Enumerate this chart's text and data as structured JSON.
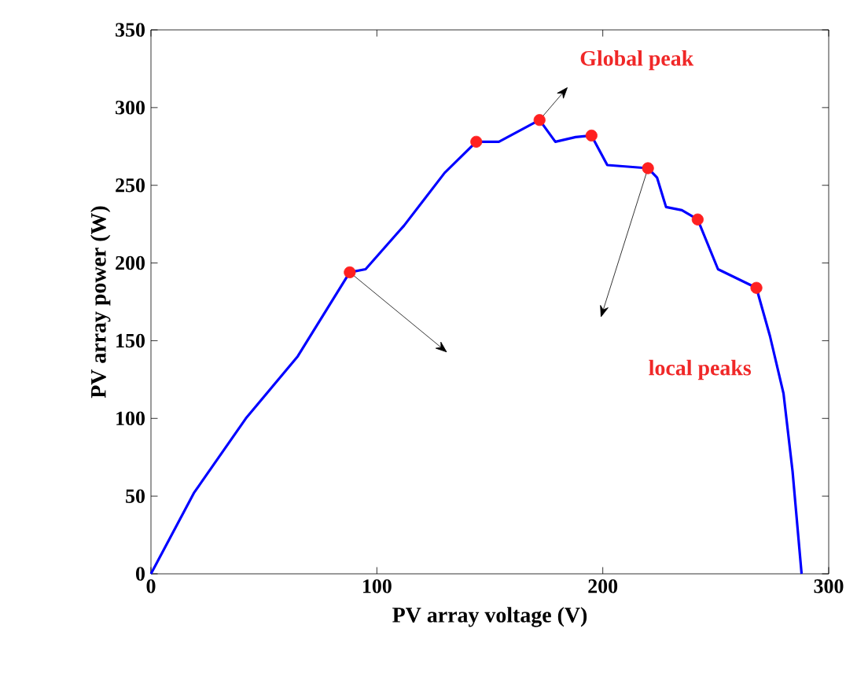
{
  "chart_data": {
    "type": "line",
    "xlabel": "PV array voltage (V)",
    "ylabel": "PV array power (W)",
    "xlim": [
      0,
      300
    ],
    "ylim": [
      0,
      350
    ],
    "xticks": [
      0,
      100,
      200,
      300
    ],
    "yticks": [
      0,
      50,
      100,
      150,
      200,
      250,
      300,
      350
    ],
    "series": [
      {
        "color": "#0000ff",
        "marker": "none",
        "x": [
          0,
          19,
          42,
          65,
          88,
          95,
          112,
          130,
          144,
          154,
          172,
          179,
          188,
          195,
          202,
          220,
          224,
          228,
          235,
          242,
          251,
          268,
          274,
          280,
          284,
          288
        ],
        "values": [
          0,
          52,
          100,
          140,
          194,
          196,
          224,
          258,
          278,
          278,
          292,
          278,
          281,
          282,
          263,
          261,
          255,
          236,
          234,
          228,
          196,
          184,
          153,
          116,
          66,
          0
        ]
      },
      {
        "type": "scatter",
        "color": "#ff2020",
        "marker": "circle",
        "x": [
          88,
          144,
          172,
          195,
          220,
          242,
          268
        ],
        "values": [
          194,
          278,
          292,
          282,
          261,
          228,
          184
        ]
      }
    ],
    "annotations": [
      {
        "text": "Global peak",
        "x": 172,
        "y": 292
      },
      "local peaks"
    ]
  }
}
